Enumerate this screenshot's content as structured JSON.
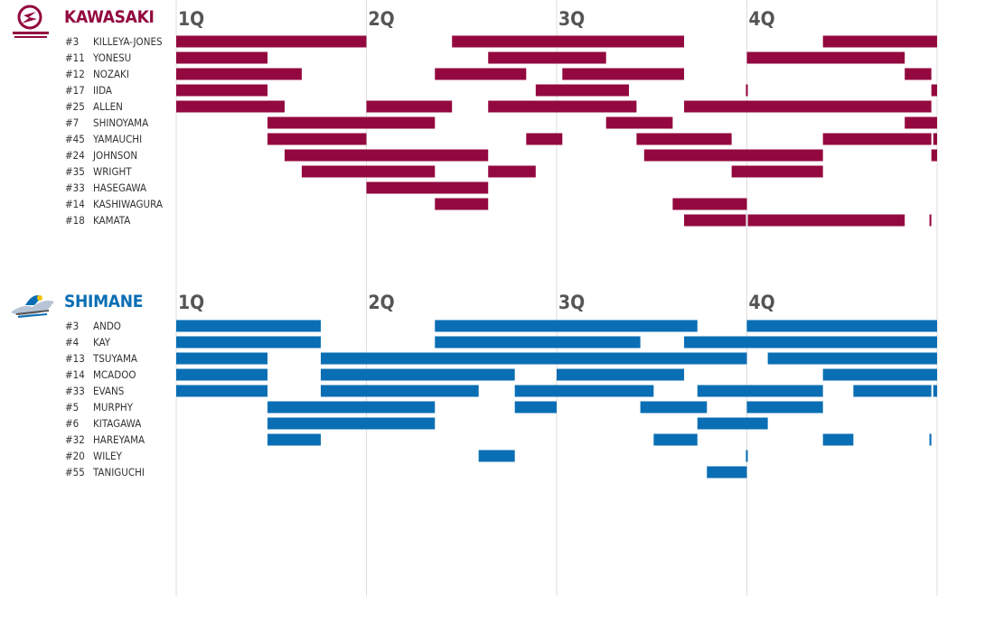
{
  "quarters": [
    "1Q",
    "2Q",
    "3Q",
    "4Q"
  ],
  "colors": {
    "kawasaki": "#93093F",
    "shimane": "#0A6EB4",
    "grid": "#DDDDDD"
  },
  "chart_data": [
    {
      "type": "gantt",
      "title": "KAWASAKI",
      "xlim": [
        0,
        40
      ],
      "players": [
        {
          "number": "#3",
          "name": "KILLEYA-JONES",
          "stints": [
            [
              0,
              10
            ],
            [
              14.5,
              26.7
            ],
            [
              34,
              40
            ]
          ]
        },
        {
          "number": "#11",
          "name": "YONESU",
          "stints": [
            [
              0,
              4.8
            ],
            [
              16.4,
              22.6
            ],
            [
              30,
              38.3
            ]
          ]
        },
        {
          "number": "#12",
          "name": "NOZAKI",
          "stints": [
            [
              0,
              6.6
            ],
            [
              13.6,
              18.4
            ],
            [
              20.3,
              26.7
            ],
            [
              38.3,
              39.7
            ]
          ]
        },
        {
          "number": "#17",
          "name": "IIDA",
          "stints": [
            [
              0,
              4.8
            ],
            [
              18.9,
              23.8
            ],
            [
              29.95,
              30.05
            ],
            [
              39.7,
              40
            ]
          ]
        },
        {
          "number": "#25",
          "name": "ALLEN",
          "stints": [
            [
              0,
              5.7
            ],
            [
              10,
              14.5
            ],
            [
              16.4,
              24.2
            ],
            [
              26.7,
              39.7
            ]
          ]
        },
        {
          "number": "#7",
          "name": "SHINOYAMA",
          "stints": [
            [
              4.8,
              13.6
            ],
            [
              22.6,
              26.1
            ],
            [
              38.3,
              40
            ]
          ]
        },
        {
          "number": "#45",
          "name": "YAMAUCHI",
          "stints": [
            [
              4.8,
              10
            ],
            [
              18.4,
              20.3
            ],
            [
              24.2,
              29.2
            ],
            [
              34,
              39.7
            ],
            [
              39.8,
              40
            ]
          ]
        },
        {
          "number": "#24",
          "name": "JOHNSON",
          "stints": [
            [
              5.7,
              16.4
            ],
            [
              24.6,
              34
            ],
            [
              39.7,
              40
            ]
          ]
        },
        {
          "number": "#35",
          "name": "WRIGHT",
          "stints": [
            [
              6.6,
              13.6
            ],
            [
              16.4,
              18.9
            ],
            [
              29.2,
              34
            ]
          ]
        },
        {
          "number": "#33",
          "name": "HASEGAWA",
          "stints": [
            [
              10,
              16.4
            ]
          ]
        },
        {
          "number": "#14",
          "name": "KASHIWAGURA",
          "stints": [
            [
              13.6,
              16.4
            ],
            [
              26.1,
              30
            ]
          ]
        },
        {
          "number": "#18",
          "name": "KAMATA",
          "stints": [
            [
              26.7,
              29.95
            ],
            [
              30.05,
              38.3
            ],
            [
              39.6,
              39.7
            ]
          ]
        }
      ]
    },
    {
      "type": "gantt",
      "title": "SHIMANE",
      "xlim": [
        0,
        40
      ],
      "players": [
        {
          "number": "#3",
          "name": "ANDO",
          "stints": [
            [
              0,
              7.6
            ],
            [
              13.6,
              27.4
            ],
            [
              30,
              40
            ]
          ]
        },
        {
          "number": "#4",
          "name": "KAY",
          "stints": [
            [
              0,
              7.6
            ],
            [
              13.6,
              24.4
            ],
            [
              26.7,
              40
            ]
          ]
        },
        {
          "number": "#13",
          "name": "TSUYAMA",
          "stints": [
            [
              0,
              4.8
            ],
            [
              7.6,
              30
            ],
            [
              31.1,
              40
            ]
          ]
        },
        {
          "number": "#14",
          "name": "MCADOO",
          "stints": [
            [
              0,
              4.8
            ],
            [
              7.6,
              17.8
            ],
            [
              20,
              26.7
            ],
            [
              34,
              40
            ]
          ]
        },
        {
          "number": "#33",
          "name": "EVANS",
          "stints": [
            [
              0,
              4.8
            ],
            [
              7.6,
              15.9
            ],
            [
              17.8,
              25.1
            ],
            [
              27.4,
              34
            ],
            [
              35.6,
              39.7
            ],
            [
              39.8,
              40
            ]
          ]
        },
        {
          "number": "#5",
          "name": "MURPHY",
          "stints": [
            [
              4.8,
              13.6
            ],
            [
              17.8,
              20
            ],
            [
              24.4,
              27.9
            ],
            [
              30,
              34
            ]
          ]
        },
        {
          "number": "#6",
          "name": "KITAGAWA",
          "stints": [
            [
              4.8,
              13.6
            ],
            [
              27.4,
              31.1
            ]
          ]
        },
        {
          "number": "#32",
          "name": "HAREYAMA",
          "stints": [
            [
              4.8,
              7.6
            ],
            [
              25.1,
              27.4
            ],
            [
              34,
              35.6
            ],
            [
              39.6,
              39.7
            ]
          ]
        },
        {
          "number": "#20",
          "name": "WILEY",
          "stints": [
            [
              15.9,
              17.8
            ],
            [
              29.95,
              30.05
            ]
          ]
        },
        {
          "number": "#55",
          "name": "TANIGUCHI",
          "stints": [
            [
              27.9,
              30
            ]
          ]
        }
      ]
    }
  ]
}
